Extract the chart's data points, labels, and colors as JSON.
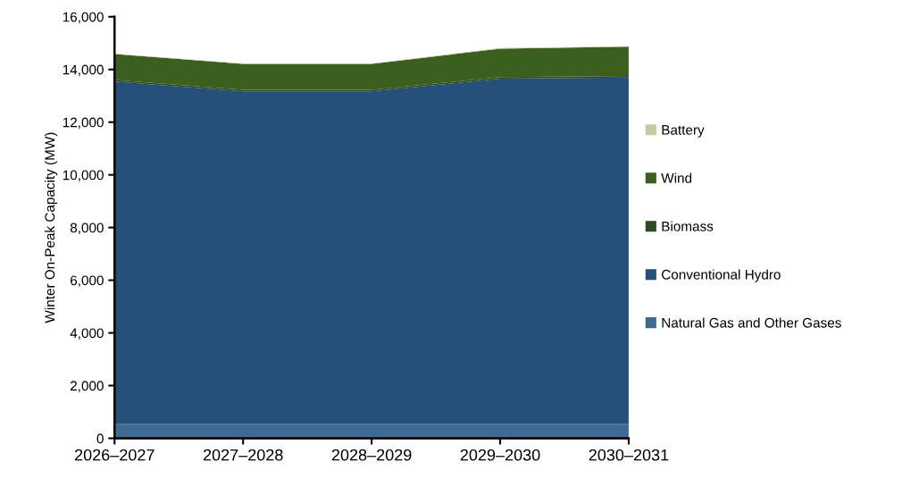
{
  "chart_data": {
    "type": "area",
    "stacked": true,
    "ylabel": "Winter On-Peak Capacity (MW)",
    "categories": [
      "2026–2027",
      "2027–2028",
      "2028–2029",
      "2029–2030",
      "2030–2031"
    ],
    "series": [
      {
        "name": "Natural Gas and Other Gases",
        "color": "#3f6a92",
        "values": [
          550,
          550,
          550,
          550,
          550
        ]
      },
      {
        "name": "Conventional Hydro",
        "color": "#24507a",
        "values": [
          12990,
          12620,
          12620,
          13100,
          13140
        ]
      },
      {
        "name": "Biomass",
        "color": "#2f4a22",
        "values": [
          60,
          60,
          60,
          60,
          60
        ]
      },
      {
        "name": "Wind",
        "color": "#3b5f1f",
        "values": [
          980,
          980,
          980,
          1080,
          1110
        ]
      },
      {
        "name": "Battery",
        "color": "#c9c9a0",
        "values": [
          20,
          20,
          20,
          20,
          20
        ]
      }
    ],
    "ylim": [
      0,
      16000
    ],
    "yticks": [
      {
        "value": 0,
        "label": "0"
      },
      {
        "value": 2000,
        "label": "2,000"
      },
      {
        "value": 4000,
        "label": "4,000"
      },
      {
        "value": 6000,
        "label": "6,000"
      },
      {
        "value": 8000,
        "label": "8,000"
      },
      {
        "value": 10000,
        "label": "10,000"
      },
      {
        "value": 12000,
        "label": "12,000"
      },
      {
        "value": 14000,
        "label": "14,000"
      },
      {
        "value": 16000,
        "label": "16,000"
      }
    ],
    "grid": false,
    "legend": "right"
  }
}
